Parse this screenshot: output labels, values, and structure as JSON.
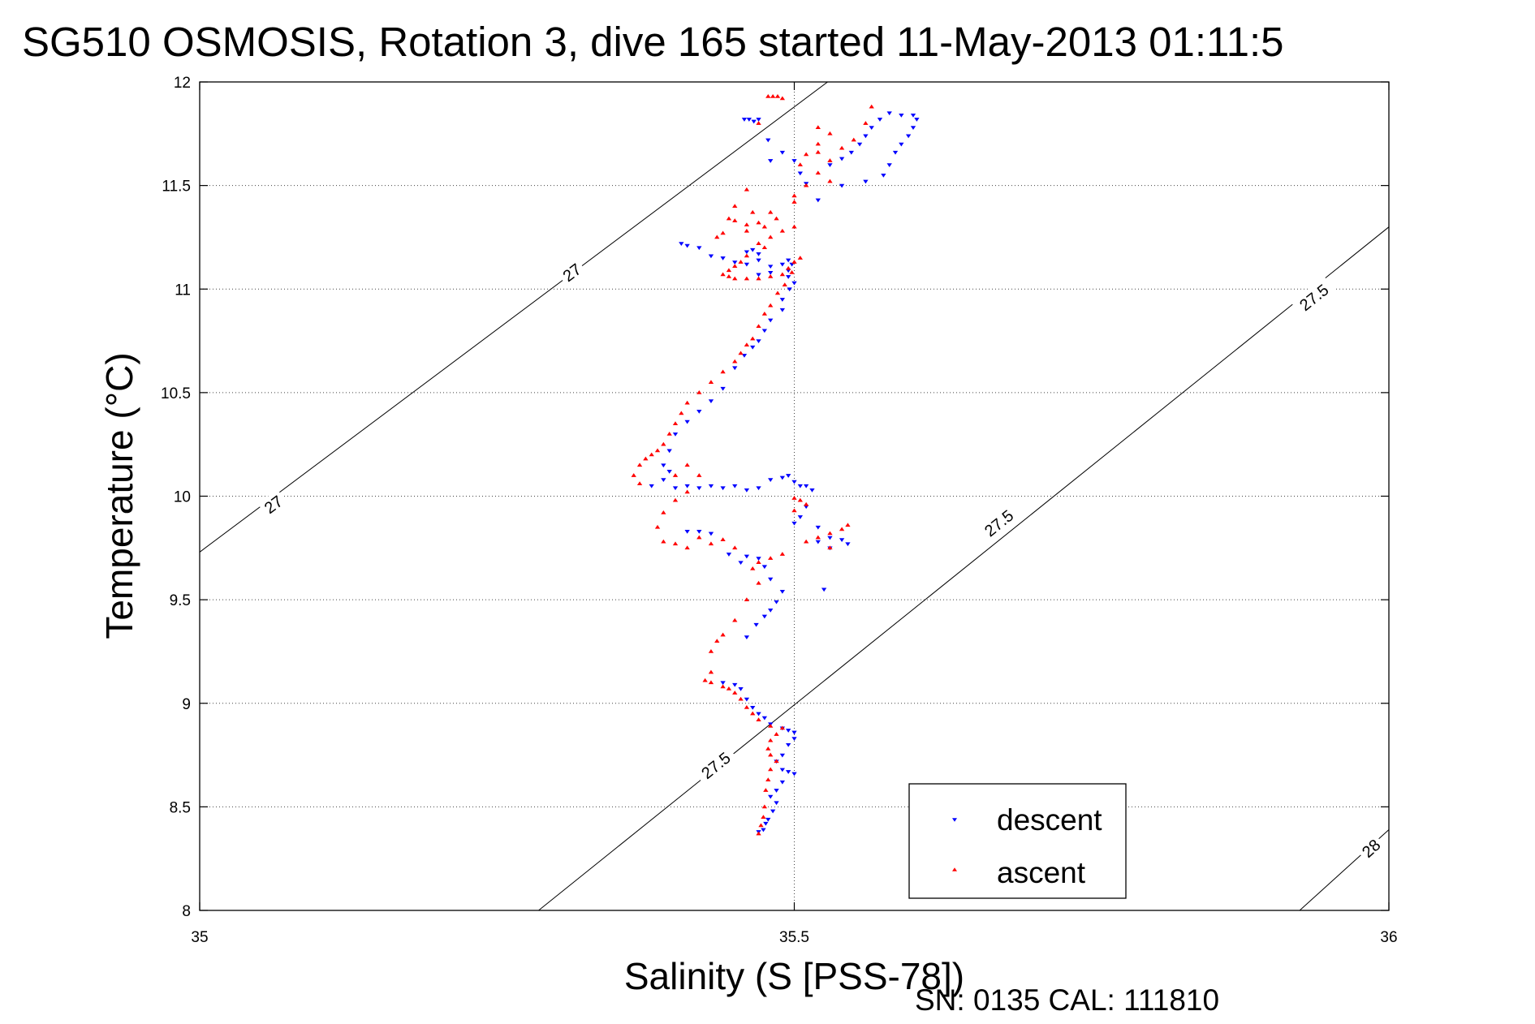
{
  "chart_data": {
    "type": "scatter",
    "title": "SG510 OSMOSIS, Rotation 3, dive 165 started 11-May-2013 01:11:5",
    "xlabel": "Salinity (S [PSS-78])",
    "ylabel": "Temperature (°C)",
    "xlim": [
      35,
      36
    ],
    "ylim": [
      8,
      12
    ],
    "xticks": [
      35,
      35.5,
      36
    ],
    "xtick_labels": [
      "35",
      "35.5",
      "36"
    ],
    "yticks": [
      8,
      8.5,
      9,
      9.5,
      10,
      10.5,
      11,
      11.5,
      12
    ],
    "ytick_labels": [
      "8",
      "8.5",
      "9",
      "9.5",
      "10",
      "10.5",
      "11",
      "11.5",
      "12"
    ],
    "grid": true,
    "legend_position": "bottom-right",
    "colors": {
      "descent": "#0000ff",
      "ascent": "#ff0000",
      "contour": "#000000"
    },
    "density_contours": [
      {
        "level": 27,
        "segments": [
          {
            "x": [
              35,
              35.528
            ],
            "y": [
              9.73,
              12.0
            ]
          }
        ],
        "labels": [
          {
            "text": "27",
            "x": 35.062,
            "y": 9.96
          },
          {
            "text": "27",
            "x": 35.313,
            "y": 11.08
          }
        ]
      },
      {
        "level": 27.5,
        "segments": [
          {
            "x": [
              35.285,
              36
            ],
            "y": [
              8.0,
              11.3
            ]
          }
        ],
        "labels": [
          {
            "text": "27.5",
            "x": 35.434,
            "y": 8.7
          },
          {
            "text": "27.5",
            "x": 35.672,
            "y": 9.87
          },
          {
            "text": "27.5",
            "x": 35.937,
            "y": 10.96
          }
        ]
      },
      {
        "level": 28,
        "segments": [
          {
            "x": [
              35.925,
              36
            ],
            "y": [
              8.0,
              8.39
            ]
          }
        ],
        "labels": [
          {
            "text": "28",
            "x": 35.985,
            "y": 8.3
          }
        ]
      }
    ],
    "series": [
      {
        "name": "descent",
        "marker": "triangle-down",
        "color": "#0000ff",
        "points": [
          [
            35.458,
            11.82
          ],
          [
            35.462,
            11.82
          ],
          [
            35.466,
            11.81
          ],
          [
            35.47,
            11.82
          ],
          [
            35.478,
            11.72
          ],
          [
            35.48,
            11.62
          ],
          [
            35.49,
            11.66
          ],
          [
            35.5,
            11.62
          ],
          [
            35.505,
            11.56
          ],
          [
            35.51,
            11.51
          ],
          [
            35.52,
            11.43
          ],
          [
            35.54,
            11.5
          ],
          [
            35.56,
            11.52
          ],
          [
            35.575,
            11.55
          ],
          [
            35.58,
            11.6
          ],
          [
            35.585,
            11.66
          ],
          [
            35.59,
            11.7
          ],
          [
            35.596,
            11.74
          ],
          [
            35.6,
            11.78
          ],
          [
            35.603,
            11.82
          ],
          [
            35.6,
            11.84
          ],
          [
            35.59,
            11.84
          ],
          [
            35.58,
            11.85
          ],
          [
            35.572,
            11.82
          ],
          [
            35.565,
            11.78
          ],
          [
            35.56,
            11.74
          ],
          [
            35.555,
            11.7
          ],
          [
            35.548,
            11.66
          ],
          [
            35.54,
            11.63
          ],
          [
            35.53,
            11.6
          ],
          [
            35.405,
            11.22
          ],
          [
            35.41,
            11.21
          ],
          [
            35.42,
            11.2
          ],
          [
            35.43,
            11.16
          ],
          [
            35.44,
            11.15
          ],
          [
            35.45,
            11.13
          ],
          [
            35.46,
            11.12
          ],
          [
            35.47,
            11.14
          ],
          [
            35.48,
            11.11
          ],
          [
            35.49,
            11.12
          ],
          [
            35.495,
            11.09
          ],
          [
            35.495,
            11.14
          ],
          [
            35.498,
            11.12
          ],
          [
            35.495,
            11.06
          ],
          [
            35.5,
            11.03
          ],
          [
            35.496,
            11.0
          ],
          [
            35.49,
            10.95
          ],
          [
            35.46,
            11.18
          ],
          [
            35.465,
            11.19
          ],
          [
            35.47,
            11.17
          ],
          [
            35.48,
            11.08
          ],
          [
            35.47,
            11.07
          ],
          [
            35.49,
            10.9
          ],
          [
            35.48,
            10.85
          ],
          [
            35.475,
            10.8
          ],
          [
            35.47,
            10.75
          ],
          [
            35.465,
            10.72
          ],
          [
            35.458,
            10.68
          ],
          [
            35.45,
            10.62
          ],
          [
            35.44,
            10.52
          ],
          [
            35.43,
            10.46
          ],
          [
            35.42,
            10.41
          ],
          [
            35.41,
            10.36
          ],
          [
            35.4,
            10.3
          ],
          [
            35.395,
            10.22
          ],
          [
            35.39,
            10.15
          ],
          [
            35.395,
            10.12
          ],
          [
            35.39,
            10.08
          ],
          [
            35.38,
            10.05
          ],
          [
            35.4,
            10.04
          ],
          [
            35.41,
            10.05
          ],
          [
            35.42,
            10.04
          ],
          [
            35.43,
            10.05
          ],
          [
            35.44,
            10.04
          ],
          [
            35.45,
            10.05
          ],
          [
            35.46,
            10.03
          ],
          [
            35.47,
            10.04
          ],
          [
            35.48,
            10.08
          ],
          [
            35.49,
            10.09
          ],
          [
            35.495,
            10.1
          ],
          [
            35.5,
            10.07
          ],
          [
            35.505,
            10.05
          ],
          [
            35.51,
            10.05
          ],
          [
            35.515,
            10.03
          ],
          [
            35.51,
            9.95
          ],
          [
            35.505,
            9.9
          ],
          [
            35.5,
            9.87
          ],
          [
            35.52,
            9.85
          ],
          [
            35.53,
            9.8
          ],
          [
            35.54,
            9.79
          ],
          [
            35.545,
            9.77
          ],
          [
            35.53,
            9.75
          ],
          [
            35.52,
            9.78
          ],
          [
            35.525,
            9.55
          ],
          [
            35.43,
            9.82
          ],
          [
            35.42,
            9.83
          ],
          [
            35.41,
            9.83
          ],
          [
            35.445,
            9.72
          ],
          [
            35.455,
            9.68
          ],
          [
            35.46,
            9.71
          ],
          [
            35.47,
            9.7
          ],
          [
            35.475,
            9.66
          ],
          [
            35.48,
            9.6
          ],
          [
            35.49,
            9.54
          ],
          [
            35.485,
            9.49
          ],
          [
            35.48,
            9.45
          ],
          [
            35.475,
            9.42
          ],
          [
            35.468,
            9.38
          ],
          [
            35.46,
            9.32
          ],
          [
            35.44,
            9.1
          ],
          [
            35.45,
            9.09
          ],
          [
            35.455,
            9.07
          ],
          [
            35.46,
            9.02
          ],
          [
            35.465,
            8.98
          ],
          [
            35.47,
            8.95
          ],
          [
            35.475,
            8.93
          ],
          [
            35.48,
            8.9
          ],
          [
            35.49,
            8.88
          ],
          [
            35.495,
            8.87
          ],
          [
            35.5,
            8.86
          ],
          [
            35.5,
            8.83
          ],
          [
            35.495,
            8.8
          ],
          [
            35.49,
            8.75
          ],
          [
            35.485,
            8.72
          ],
          [
            35.49,
            8.68
          ],
          [
            35.495,
            8.67
          ],
          [
            35.5,
            8.66
          ],
          [
            35.49,
            8.62
          ],
          [
            35.485,
            8.58
          ],
          [
            35.48,
            8.55
          ],
          [
            35.485,
            8.52
          ],
          [
            35.482,
            8.48
          ],
          [
            35.478,
            8.44
          ],
          [
            35.476,
            8.42
          ],
          [
            35.474,
            8.39
          ],
          [
            35.47,
            8.38
          ]
        ]
      },
      {
        "name": "ascent",
        "marker": "triangle-up",
        "color": "#ff0000",
        "points": [
          [
            35.478,
            11.93
          ],
          [
            35.482,
            11.93
          ],
          [
            35.486,
            11.93
          ],
          [
            35.49,
            11.92
          ],
          [
            35.47,
            11.8
          ],
          [
            35.52,
            11.78
          ],
          [
            35.53,
            11.75
          ],
          [
            35.52,
            11.7
          ],
          [
            35.51,
            11.65
          ],
          [
            35.505,
            11.6
          ],
          [
            35.52,
            11.56
          ],
          [
            35.53,
            11.52
          ],
          [
            35.51,
            11.5
          ],
          [
            35.5,
            11.45
          ],
          [
            35.5,
            11.42
          ],
          [
            35.52,
            11.66
          ],
          [
            35.53,
            11.62
          ],
          [
            35.54,
            11.68
          ],
          [
            35.55,
            11.72
          ],
          [
            35.56,
            11.8
          ],
          [
            35.565,
            11.88
          ],
          [
            35.445,
            11.34
          ],
          [
            35.45,
            11.33
          ],
          [
            35.46,
            11.31
          ],
          [
            35.47,
            11.32
          ],
          [
            35.475,
            11.3
          ],
          [
            35.46,
            11.28
          ],
          [
            35.44,
            11.27
          ],
          [
            35.435,
            11.25
          ],
          [
            35.45,
            11.4
          ],
          [
            35.46,
            11.48
          ],
          [
            35.465,
            11.37
          ],
          [
            35.47,
            11.22
          ],
          [
            35.475,
            11.2
          ],
          [
            35.48,
            11.25
          ],
          [
            35.49,
            11.28
          ],
          [
            35.5,
            11.3
          ],
          [
            35.485,
            11.34
          ],
          [
            35.48,
            11.37
          ],
          [
            35.46,
            11.16
          ],
          [
            35.455,
            11.13
          ],
          [
            35.45,
            11.11
          ],
          [
            35.445,
            11.09
          ],
          [
            35.44,
            11.07
          ],
          [
            35.445,
            11.06
          ],
          [
            35.45,
            11.05
          ],
          [
            35.46,
            11.05
          ],
          [
            35.47,
            11.05
          ],
          [
            35.48,
            11.06
          ],
          [
            35.49,
            11.07
          ],
          [
            35.495,
            11.1
          ],
          [
            35.5,
            11.13
          ],
          [
            35.505,
            11.15
          ],
          [
            35.498,
            11.08
          ],
          [
            35.492,
            11.02
          ],
          [
            35.486,
            10.98
          ],
          [
            35.48,
            10.92
          ],
          [
            35.475,
            10.88
          ],
          [
            35.47,
            10.82
          ],
          [
            35.465,
            10.76
          ],
          [
            35.46,
            10.73
          ],
          [
            35.455,
            10.69
          ],
          [
            35.45,
            10.65
          ],
          [
            35.44,
            10.6
          ],
          [
            35.43,
            10.55
          ],
          [
            35.42,
            10.5
          ],
          [
            35.41,
            10.45
          ],
          [
            35.405,
            10.4
          ],
          [
            35.4,
            10.35
          ],
          [
            35.395,
            10.3
          ],
          [
            35.39,
            10.25
          ],
          [
            35.385,
            10.22
          ],
          [
            35.38,
            10.2
          ],
          [
            35.375,
            10.18
          ],
          [
            35.37,
            10.15
          ],
          [
            35.365,
            10.1
          ],
          [
            35.37,
            10.06
          ],
          [
            35.4,
            10.1
          ],
          [
            35.41,
            10.15
          ],
          [
            35.42,
            10.1
          ],
          [
            35.41,
            10.02
          ],
          [
            35.4,
            9.98
          ],
          [
            35.39,
            9.92
          ],
          [
            35.385,
            9.85
          ],
          [
            35.39,
            9.78
          ],
          [
            35.4,
            9.77
          ],
          [
            35.41,
            9.75
          ],
          [
            35.42,
            9.8
          ],
          [
            35.43,
            9.77
          ],
          [
            35.44,
            9.79
          ],
          [
            35.45,
            9.75
          ],
          [
            35.465,
            9.65
          ],
          [
            35.47,
            9.68
          ],
          [
            35.48,
            9.7
          ],
          [
            35.49,
            9.72
          ],
          [
            35.5,
            9.93
          ],
          [
            35.505,
            9.98
          ],
          [
            35.51,
            9.96
          ],
          [
            35.5,
            9.99
          ],
          [
            35.51,
            9.78
          ],
          [
            35.52,
            9.8
          ],
          [
            35.53,
            9.82
          ],
          [
            35.54,
            9.84
          ],
          [
            35.545,
            9.86
          ],
          [
            35.53,
            9.75
          ],
          [
            35.47,
            9.58
          ],
          [
            35.46,
            9.5
          ],
          [
            35.45,
            9.4
          ],
          [
            35.44,
            9.33
          ],
          [
            35.435,
            9.3
          ],
          [
            35.43,
            9.25
          ],
          [
            35.43,
            9.15
          ],
          [
            35.425,
            9.11
          ],
          [
            35.43,
            9.1
          ],
          [
            35.44,
            9.08
          ],
          [
            35.445,
            9.07
          ],
          [
            35.45,
            9.05
          ],
          [
            35.455,
            9.02
          ],
          [
            35.46,
            8.98
          ],
          [
            35.465,
            8.95
          ],
          [
            35.47,
            8.92
          ],
          [
            35.48,
            8.89
          ],
          [
            35.49,
            8.88
          ],
          [
            35.485,
            8.85
          ],
          [
            35.48,
            8.82
          ],
          [
            35.478,
            8.78
          ],
          [
            35.48,
            8.75
          ],
          [
            35.485,
            8.72
          ],
          [
            35.48,
            8.68
          ],
          [
            35.478,
            8.63
          ],
          [
            35.476,
            8.58
          ],
          [
            35.475,
            8.5
          ],
          [
            35.474,
            8.45
          ],
          [
            35.472,
            8.41
          ],
          [
            35.47,
            8.37
          ]
        ]
      }
    ],
    "legend": {
      "descent": "descent",
      "ascent": "ascent"
    },
    "footer": "SN: 0135  CAL: 111810"
  }
}
